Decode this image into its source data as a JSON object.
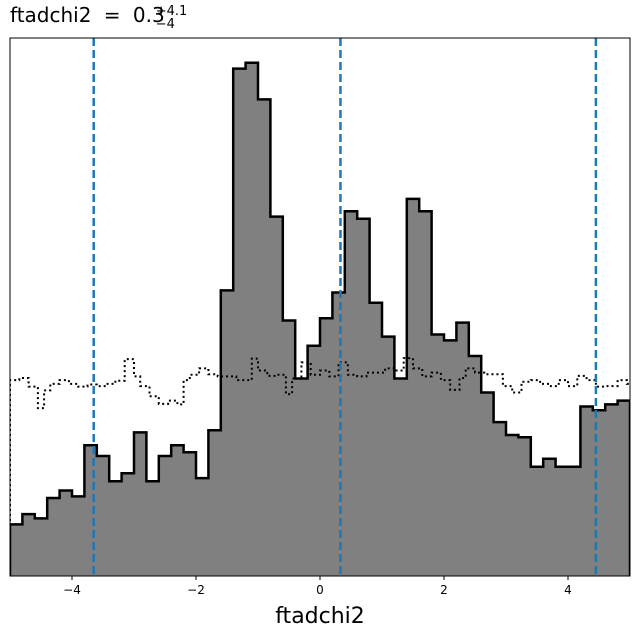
{
  "chart_data": {
    "type": "histogram",
    "title": {
      "param": "ftadchi2",
      "equals": "=",
      "value": "0.3",
      "upper": "+4.1",
      "lower": "−4"
    },
    "xlabel": "ftadchi2",
    "ylabel": "",
    "xlim": [
      -5,
      5
    ],
    "ylim": [
      0,
      1.0
    ],
    "grid": false,
    "xticks": [
      -4,
      -2,
      0,
      2,
      4
    ],
    "xtick_labels": [
      "−4",
      "−2",
      "0",
      "2",
      "4"
    ],
    "bin_width": 0.2,
    "posterior": {
      "fill_color": "#808080",
      "edge_color": "#000000",
      "bins": [
        {
          "x": -5.0,
          "y": 0.096
        },
        {
          "x": -4.8,
          "y": 0.115
        },
        {
          "x": -4.6,
          "y": 0.107
        },
        {
          "x": -4.4,
          "y": 0.145
        },
        {
          "x": -4.2,
          "y": 0.159
        },
        {
          "x": -4.0,
          "y": 0.148
        },
        {
          "x": -3.8,
          "y": 0.243
        },
        {
          "x": -3.6,
          "y": 0.223
        },
        {
          "x": -3.4,
          "y": 0.176
        },
        {
          "x": -3.2,
          "y": 0.191
        },
        {
          "x": -3.0,
          "y": 0.267
        },
        {
          "x": -2.8,
          "y": 0.176
        },
        {
          "x": -2.6,
          "y": 0.223
        },
        {
          "x": -2.4,
          "y": 0.243
        },
        {
          "x": -2.2,
          "y": 0.23
        },
        {
          "x": -2.0,
          "y": 0.182
        },
        {
          "x": -1.8,
          "y": 0.271
        },
        {
          "x": -1.6,
          "y": 0.531
        },
        {
          "x": -1.4,
          "y": 0.943
        },
        {
          "x": -1.2,
          "y": 0.954
        },
        {
          "x": -1.0,
          "y": 0.886
        },
        {
          "x": -0.8,
          "y": 0.668
        },
        {
          "x": -0.6,
          "y": 0.475
        },
        {
          "x": -0.4,
          "y": 0.367
        },
        {
          "x": -0.2,
          "y": 0.428
        },
        {
          "x": 0.0,
          "y": 0.479
        },
        {
          "x": 0.2,
          "y": 0.527
        },
        {
          "x": 0.4,
          "y": 0.678
        },
        {
          "x": 0.6,
          "y": 0.664
        },
        {
          "x": 0.8,
          "y": 0.508
        },
        {
          "x": 1.0,
          "y": 0.445
        },
        {
          "x": 1.2,
          "y": 0.367
        },
        {
          "x": 1.4,
          "y": 0.701
        },
        {
          "x": 1.6,
          "y": 0.678
        },
        {
          "x": 1.8,
          "y": 0.449
        },
        {
          "x": 2.0,
          "y": 0.438
        },
        {
          "x": 2.2,
          "y": 0.471
        },
        {
          "x": 2.4,
          "y": 0.409
        },
        {
          "x": 2.6,
          "y": 0.341
        },
        {
          "x": 2.8,
          "y": 0.286
        },
        {
          "x": 3.0,
          "y": 0.262
        },
        {
          "x": 3.2,
          "y": 0.258
        },
        {
          "x": 3.4,
          "y": 0.203
        },
        {
          "x": 3.6,
          "y": 0.218
        },
        {
          "x": 3.8,
          "y": 0.203
        },
        {
          "x": 4.0,
          "y": 0.203
        },
        {
          "x": 4.2,
          "y": 0.315
        },
        {
          "x": 4.4,
          "y": 0.308
        },
        {
          "x": 4.6,
          "y": 0.319
        },
        {
          "x": 4.8,
          "y": 0.326
        }
      ]
    },
    "prior": {
      "line_style": "dotted",
      "color": "#000000",
      "steps": [
        {
          "x0": -5.0,
          "x1": -4.85,
          "y": 0.364
        },
        {
          "x0": -4.85,
          "x1": -4.7,
          "y": 0.368
        },
        {
          "x0": -4.7,
          "x1": -4.55,
          "y": 0.352
        },
        {
          "x0": -4.55,
          "x1": -4.45,
          "y": 0.312
        },
        {
          "x0": -4.45,
          "x1": -4.35,
          "y": 0.345
        },
        {
          "x0": -4.35,
          "x1": -4.2,
          "y": 0.357
        },
        {
          "x0": -4.2,
          "x1": -4.05,
          "y": 0.364
        },
        {
          "x0": -4.05,
          "x1": -3.9,
          "y": 0.357
        },
        {
          "x0": -3.9,
          "x1": -3.75,
          "y": 0.352
        },
        {
          "x0": -3.75,
          "x1": -3.6,
          "y": 0.356
        },
        {
          "x0": -3.6,
          "x1": -3.45,
          "y": 0.353
        },
        {
          "x0": -3.45,
          "x1": -3.3,
          "y": 0.357
        },
        {
          "x0": -3.3,
          "x1": -3.15,
          "y": 0.363
        },
        {
          "x0": -3.15,
          "x1": -3.0,
          "y": 0.403
        },
        {
          "x0": -3.0,
          "x1": -2.9,
          "y": 0.371
        },
        {
          "x0": -2.9,
          "x1": -2.75,
          "y": 0.353
        },
        {
          "x0": -2.75,
          "x1": -2.6,
          "y": 0.334
        },
        {
          "x0": -2.6,
          "x1": -2.45,
          "y": 0.32
        },
        {
          "x0": -2.45,
          "x1": -2.3,
          "y": 0.326
        },
        {
          "x0": -2.3,
          "x1": -2.2,
          "y": 0.319
        },
        {
          "x0": -2.2,
          "x1": -2.1,
          "y": 0.364
        },
        {
          "x0": -2.1,
          "x1": -1.95,
          "y": 0.374
        },
        {
          "x0": -1.95,
          "x1": -1.8,
          "y": 0.386
        },
        {
          "x0": -1.8,
          "x1": -1.65,
          "y": 0.375
        },
        {
          "x0": -1.65,
          "x1": -1.5,
          "y": 0.371
        },
        {
          "x0": -1.5,
          "x1": -1.35,
          "y": 0.371
        },
        {
          "x0": -1.35,
          "x1": -1.25,
          "y": 0.364
        },
        {
          "x0": -1.25,
          "x1": -1.1,
          "y": 0.364
        },
        {
          "x0": -1.1,
          "x1": -1.0,
          "y": 0.404
        },
        {
          "x0": -1.0,
          "x1": -0.85,
          "y": 0.382
        },
        {
          "x0": -0.85,
          "x1": -0.7,
          "y": 0.372
        },
        {
          "x0": -0.7,
          "x1": -0.55,
          "y": 0.374
        },
        {
          "x0": -0.55,
          "x1": -0.45,
          "y": 0.338
        },
        {
          "x0": -0.45,
          "x1": -0.3,
          "y": 0.367
        },
        {
          "x0": -0.3,
          "x1": -0.15,
          "y": 0.397
        },
        {
          "x0": -0.15,
          "x1": 0.0,
          "y": 0.374
        },
        {
          "x0": 0.0,
          "x1": 0.15,
          "y": 0.382
        },
        {
          "x0": 0.15,
          "x1": 0.3,
          "y": 0.371
        },
        {
          "x0": 0.3,
          "x1": 0.45,
          "y": 0.397
        },
        {
          "x0": 0.45,
          "x1": 0.6,
          "y": 0.374
        },
        {
          "x0": 0.6,
          "x1": 0.75,
          "y": 0.371
        },
        {
          "x0": 0.75,
          "x1": 0.9,
          "y": 0.378
        },
        {
          "x0": 0.9,
          "x1": 1.05,
          "y": 0.378
        },
        {
          "x0": 1.05,
          "x1": 1.2,
          "y": 0.386
        },
        {
          "x0": 1.2,
          "x1": 1.35,
          "y": 0.382
        },
        {
          "x0": 1.35,
          "x1": 1.5,
          "y": 0.405
        },
        {
          "x0": 1.5,
          "x1": 1.65,
          "y": 0.386
        },
        {
          "x0": 1.65,
          "x1": 1.8,
          "y": 0.371
        },
        {
          "x0": 1.8,
          "x1": 1.95,
          "y": 0.378
        },
        {
          "x0": 1.95,
          "x1": 2.1,
          "y": 0.364
        },
        {
          "x0": 2.1,
          "x1": 2.25,
          "y": 0.346
        },
        {
          "x0": 2.25,
          "x1": 2.35,
          "y": 0.368
        },
        {
          "x0": 2.35,
          "x1": 2.5,
          "y": 0.386
        },
        {
          "x0": 2.5,
          "x1": 2.65,
          "y": 0.378
        },
        {
          "x0": 2.65,
          "x1": 2.8,
          "y": 0.375
        },
        {
          "x0": 2.8,
          "x1": 2.95,
          "y": 0.375
        },
        {
          "x0": 2.95,
          "x1": 3.1,
          "y": 0.353
        },
        {
          "x0": 3.1,
          "x1": 3.25,
          "y": 0.341
        },
        {
          "x0": 3.25,
          "x1": 3.4,
          "y": 0.361
        },
        {
          "x0": 3.4,
          "x1": 3.55,
          "y": 0.364
        },
        {
          "x0": 3.55,
          "x1": 3.7,
          "y": 0.357
        },
        {
          "x0": 3.7,
          "x1": 3.85,
          "y": 0.353
        },
        {
          "x0": 3.85,
          "x1": 4.0,
          "y": 0.364
        },
        {
          "x0": 4.0,
          "x1": 4.15,
          "y": 0.353
        },
        {
          "x0": 4.15,
          "x1": 4.3,
          "y": 0.372
        },
        {
          "x0": 4.3,
          "x1": 4.45,
          "y": 0.364
        },
        {
          "x0": 4.45,
          "x1": 4.6,
          "y": 0.352
        },
        {
          "x0": 4.6,
          "x1": 4.8,
          "y": 0.353
        },
        {
          "x0": 4.8,
          "x1": 4.95,
          "y": 0.364
        },
        {
          "x0": 4.95,
          "x1": 5.0,
          "y": 0.357
        }
      ]
    },
    "vlines": {
      "color": "#1f77b4",
      "style": "dashed",
      "values": [
        -3.65,
        0.33,
        4.45
      ]
    }
  }
}
